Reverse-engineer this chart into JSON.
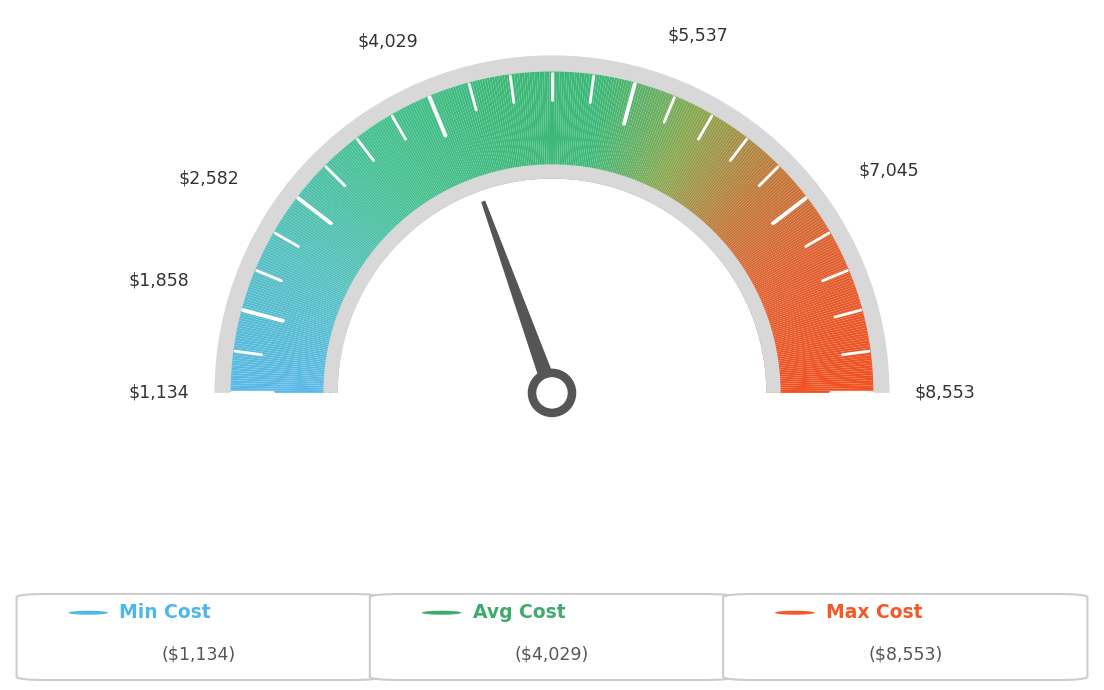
{
  "min_val": 1134,
  "max_val": 8553,
  "avg_val": 4029,
  "labels": [
    "$1,134",
    "$1,858",
    "$2,582",
    "$4,029",
    "$5,537",
    "$7,045",
    "$8,553"
  ],
  "label_values": [
    1134,
    1858,
    2582,
    4029,
    5537,
    7045,
    8553
  ],
  "legend_labels": [
    "Min Cost",
    "Avg Cost",
    "Max Cost"
  ],
  "legend_values": [
    "($1,134)",
    "($4,029)",
    "($8,553)"
  ],
  "legend_colors": [
    "#4db8e8",
    "#3daa6e",
    "#f05a28"
  ],
  "bg_color": "#ffffff",
  "needle_color": "#555555",
  "colors_gradient": [
    [
      0.0,
      "#5ab8e8"
    ],
    [
      0.15,
      "#55c0c0"
    ],
    [
      0.3,
      "#45c090"
    ],
    [
      0.45,
      "#3db878"
    ],
    [
      0.55,
      "#3db878"
    ],
    [
      0.65,
      "#88a850"
    ],
    [
      0.75,
      "#c07838"
    ],
    [
      0.85,
      "#e06030"
    ],
    [
      1.0,
      "#f05020"
    ]
  ]
}
